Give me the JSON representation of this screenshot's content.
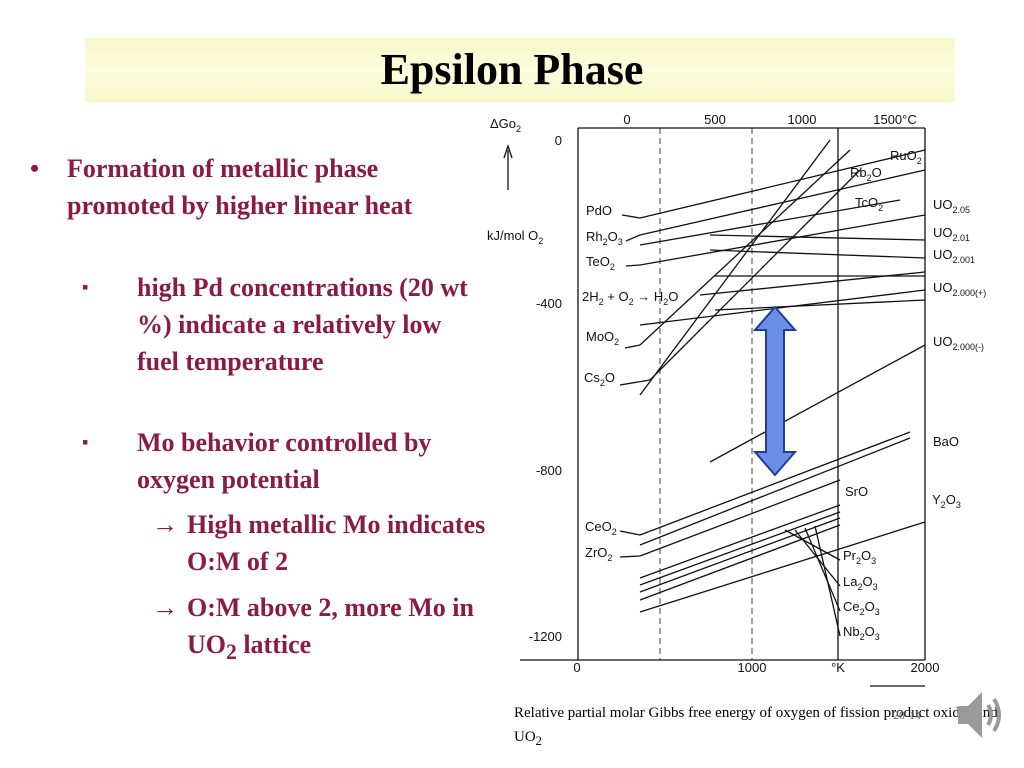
{
  "header": {
    "title": "Epsilon Phase"
  },
  "bullets": [
    {
      "level": 1,
      "marker": "•",
      "text": [
        "Formation of metallic phase promoted by higher linear heat"
      ]
    },
    {
      "level": 2,
      "marker": "▪",
      "text": [
        "high Pd concentrations (20 wt %) indicate a relatively low fuel temperature"
      ]
    },
    {
      "level": 2,
      "marker": "▪",
      "text": [
        "Mo behavior controlled by oxygen potential"
      ]
    },
    {
      "level": 3,
      "marker": "→",
      "text": [
        "High metallic Mo indicates O:M of 2"
      ]
    },
    {
      "level": 3,
      "marker": "→",
      "text": [
        "O:M above 2, more Mo in UO",
        "2",
        " lattice"
      ]
    }
  ],
  "figure": {
    "y_label": [
      "ΔGo",
      "2"
    ],
    "y_unit": [
      "kJ/mol O",
      "2"
    ],
    "y_ticks": [
      "0",
      "-400",
      "-800",
      "-1200"
    ],
    "top_ticks": [
      "0",
      "500",
      "1000",
      "1500°C"
    ],
    "bottom_ticks": [
      "0",
      "1000",
      "°K",
      "2000"
    ],
    "labels": [
      [
        "PdO"
      ],
      [
        "Rh",
        "2",
        "O",
        "3"
      ],
      [
        "TeO",
        "2"
      ],
      [
        "2H",
        "2",
        " + O",
        "2",
        " → H",
        "2",
        "O"
      ],
      [
        "MoO",
        "2"
      ],
      [
        "Cs",
        "2",
        "O"
      ],
      [
        "RuO",
        "2"
      ],
      [
        "Rb",
        "2",
        "O"
      ],
      [
        "TcO",
        "2"
      ],
      [
        "UO",
        "2.05"
      ],
      [
        "UO",
        "2.01"
      ],
      [
        "UO",
        "2.001"
      ],
      [
        "UO",
        "2.000(+)"
      ],
      [
        "UO",
        "2.000(-)"
      ],
      [
        "BaO"
      ],
      [
        "SrO"
      ],
      [
        "Y",
        "2",
        "O",
        "3"
      ],
      [
        "CeO",
        "2"
      ],
      [
        "ZrO",
        "2"
      ],
      [
        "Pr",
        "2",
        "O",
        "3"
      ],
      [
        "La",
        "2",
        "O",
        "3"
      ],
      [
        "Ce",
        "2",
        "O",
        "3"
      ],
      [
        "Nb",
        "2",
        "O",
        "3"
      ]
    ]
  },
  "caption": [
    "Relative partial molar Gibbs free energy of oxygen of fission product oxides and UO",
    "2"
  ],
  "slide_number": "20-14"
}
